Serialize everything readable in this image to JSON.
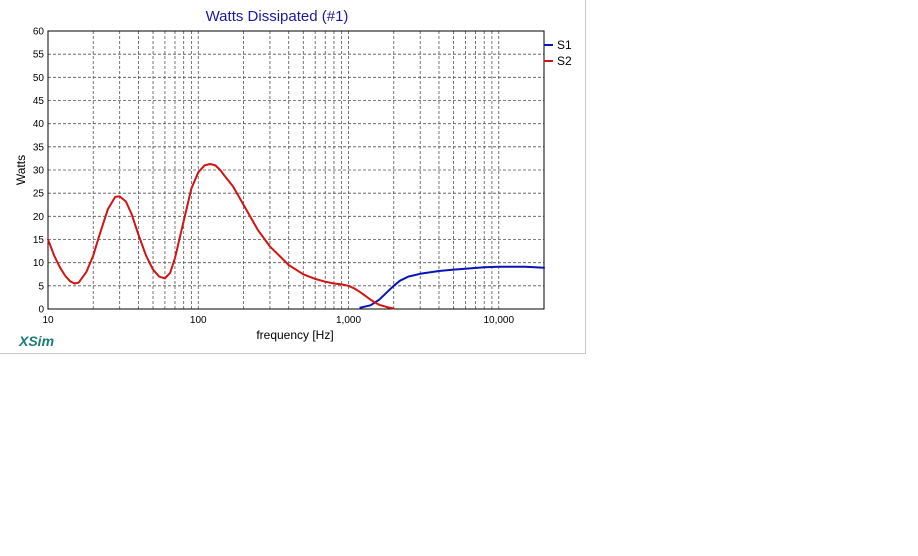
{
  "brand": "XSim",
  "colors": {
    "title": "#1a1aa0",
    "s1": "#0a14b4",
    "s2": "#d21414",
    "brand": "#1a7a7a",
    "grid": "#555555"
  },
  "chart_data": {
    "type": "line",
    "title": "Watts Dissipated (#1)",
    "xlabel": "frequency [Hz]",
    "ylabel": "Watts",
    "xscale": "log",
    "xlim": [
      10,
      20000
    ],
    "ylim": [
      0,
      60
    ],
    "yticks": [
      0,
      5,
      10,
      15,
      20,
      25,
      30,
      35,
      40,
      45,
      50,
      55,
      60
    ],
    "xticks": [
      {
        "value": 10,
        "label": "10"
      },
      {
        "value": 100,
        "label": "100"
      },
      {
        "value": 1000,
        "label": "1,000"
      },
      {
        "value": 10000,
        "label": "10,000"
      }
    ],
    "grid": true,
    "legend_position": "top-right",
    "series": [
      {
        "name": "S1",
        "color": "#0a14b4",
        "x": [
          1200,
          1400,
          1600,
          1800,
          2000,
          2200,
          2500,
          3000,
          4000,
          5000,
          6000,
          8000,
          10000,
          15000,
          20000
        ],
        "y": [
          0.3,
          0.8,
          2.0,
          3.6,
          5.0,
          6.1,
          7.0,
          7.6,
          8.2,
          8.5,
          8.7,
          9.0,
          9.1,
          9.1,
          8.9
        ]
      },
      {
        "name": "S2",
        "color": "#d21414",
        "x": [
          10,
          11,
          12,
          13,
          14,
          15,
          16,
          18,
          20,
          22,
          25,
          28,
          30,
          33,
          36,
          40,
          45,
          50,
          55,
          60,
          65,
          70,
          80,
          90,
          100,
          110,
          120,
          130,
          140,
          150,
          170,
          200,
          250,
          300,
          400,
          500,
          600,
          700,
          800,
          900,
          1000,
          1100,
          1200,
          1300,
          1400,
          1500,
          1600,
          1800,
          2000
        ],
        "y": [
          15.0,
          11.5,
          9.0,
          7.2,
          6.0,
          5.5,
          5.7,
          8.0,
          11.5,
          16.0,
          21.5,
          24.2,
          24.3,
          23.2,
          20.5,
          16.0,
          11.5,
          8.5,
          7.0,
          6.6,
          7.8,
          11.0,
          19.0,
          26.0,
          29.5,
          31.0,
          31.3,
          31.0,
          30.0,
          28.7,
          26.5,
          22.5,
          17.0,
          13.5,
          9.5,
          7.5,
          6.5,
          5.9,
          5.5,
          5.3,
          5.0,
          4.4,
          3.6,
          2.8,
          2.0,
          1.4,
          0.9,
          0.4,
          0.1
        ]
      }
    ]
  }
}
